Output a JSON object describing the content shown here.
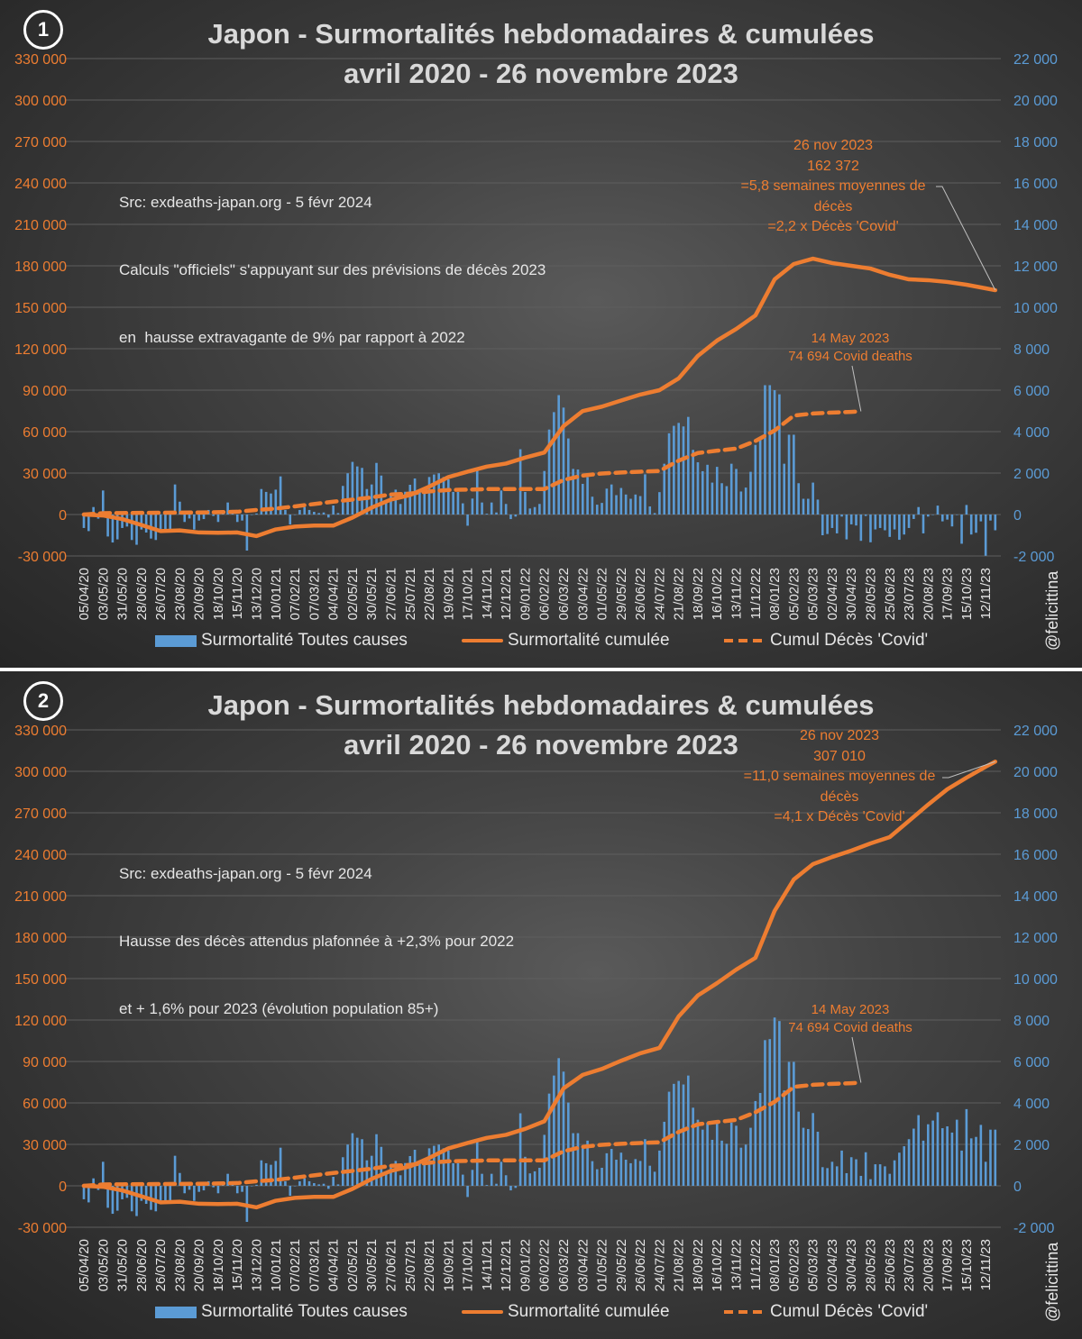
{
  "colors": {
    "bars": "#5b9bd5",
    "cumulative": "#ed7d31",
    "covid": "#ed7d31",
    "left_axis": "#ed7d31",
    "right_axis": "#5b9bd5",
    "grid": "#5e5e5e"
  },
  "legend": {
    "bars": "Surmortalité Toutes causes",
    "cumulative": "Surmortalité cumulée",
    "covid": "Cumul Décès 'Covid'"
  },
  "watermark": "@felicittina",
  "chart_data": [
    {
      "type": "bar+line",
      "badge": "1",
      "title_line1": "Japon - Surmortalités hebdomadaires & cumulées",
      "title_line2": "avril 2020 - 26 novembre 2023",
      "note": [
        "Src: exdeaths-japan.org - 5 févr 2024",
        "Calculs \"officiels\" s'appuyant sur des prévisions de décès 2023",
        "en  hausse extravagante de 9% par rapport à 2022"
      ],
      "annotation_end": [
        "26 nov 2023",
        "162 372",
        "=5,8 semaines moyennes de",
        "décès",
        "=2,2 x Décès 'Covid'"
      ],
      "annotation_covid": [
        "14 May 2023",
        "74 694 Covid deaths"
      ],
      "left_axis": {
        "ylim": [
          -30000,
          330000
        ],
        "ticks": [
          "-30 000",
          "0",
          "30 000",
          "60 000",
          "90 000",
          "120 000",
          "150 000",
          "180 000",
          "210 000",
          "240 000",
          "270 000",
          "300 000",
          "330 000"
        ]
      },
      "right_axis": {
        "ylim": [
          -2000,
          22000
        ],
        "ticks": [
          "-2 000",
          "0",
          "2 000",
          "4 000",
          "6 000",
          "8 000",
          "10 000",
          "12 000",
          "14 000",
          "16 000",
          "18 000",
          "20 000",
          "22 000"
        ]
      },
      "grid": true,
      "x_frequency": "weekly",
      "x_start": "05/04/20",
      "x_end": "26/11/23",
      "categories": [
        "05/04/20",
        "03/05/20",
        "31/05/20",
        "28/06/20",
        "26/07/20",
        "23/08/20",
        "20/09/20",
        "18/10/20",
        "15/11/20",
        "13/12/20",
        "10/01/21",
        "07/02/21",
        "07/03/21",
        "04/04/21",
        "02/05/21",
        "30/05/21",
        "27/06/21",
        "25/07/21",
        "22/08/21",
        "19/09/21",
        "17/10/21",
        "14/11/21",
        "12/12/21",
        "09/01/22",
        "06/02/22",
        "06/03/22",
        "03/04/22",
        "01/05/22",
        "29/05/22",
        "26/06/22",
        "24/07/22",
        "21/08/22",
        "18/09/22",
        "16/10/22",
        "13/11/22",
        "11/12/22",
        "08/01/23",
        "05/02/23",
        "05/03/23",
        "02/04/23",
        "30/04/23",
        "28/05/23",
        "25/06/23",
        "23/07/23",
        "20/08/23",
        "17/09/23",
        "15/10/23",
        "12/11/23"
      ],
      "weekly_excess": [
        -650,
        -800,
        360,
        -200,
        1160,
        -1060,
        -1350,
        -1200,
        -650,
        -580,
        -1230,
        -1460,
        -725,
        -870,
        -1160,
        -1230,
        -800,
        -870,
        -725,
        1450,
        620,
        -360,
        -190,
        -725,
        -290,
        -220,
        220,
        -70,
        -360,
        70,
        580,
        220,
        -360,
        -290,
        -1740,
        0,
        50,
        1230,
        1090,
        1015,
        1200,
        1840,
        220,
        -480,
        0,
        220,
        360,
        220,
        130,
        70,
        100,
        -145,
        435,
        70,
        1380,
        1990,
        2540,
        2320,
        2250,
        1230,
        1450,
        2490,
        1880,
        650,
        940,
        1200,
        510,
        1100,
        1435,
        1740,
        1100,
        1160,
        1810,
        1930,
        1990,
        1810,
        1700,
        1090,
        1090,
        540,
        -540,
        770,
        2140,
        580,
        40,
        580,
        100,
        1160,
        510,
        -220,
        -100,
        3150,
        1090,
        290,
        360,
        510,
        2100,
        4100,
        4940,
        5760,
        5160,
        3670,
        2200,
        2170,
        1480,
        1800,
        860,
        475,
        560,
        1250,
        1450,
        935,
        1280,
        965,
        760,
        965,
        890,
        1940,
        390,
        70,
        1080,
        2450,
        3920,
        4280,
        4420,
        4250,
        4710,
        3120,
        2520,
        2090,
        2400,
        1540,
        2300,
        1510,
        1370,
        2450,
        2200,
        1110,
        1300,
        2060,
        3360,
        3740,
        6240,
        6240,
        6000,
        5800,
        2450,
        3850,
        3850,
        1510,
        760,
        760,
        1540,
        720,
        -1000,
        -940,
        -650,
        -910,
        -100,
        -1200,
        -475,
        -530,
        -1270,
        -70,
        -1340,
        -720,
        -650,
        -760,
        -1080,
        -720,
        -1220,
        -965,
        -650,
        -215,
        360,
        -910,
        -100,
        0,
        430,
        -330,
        -245,
        -575,
        0,
        -1410,
        460,
        -965,
        -880,
        -330,
        -1990,
        -290,
        -760
      ],
      "cumulative_at_categories": [
        0,
        -700,
        -3300,
        -7600,
        -12000,
        -11500,
        -13000,
        -13200,
        -13000,
        -15600,
        -10800,
        -8700,
        -8000,
        -8000,
        -2200,
        5000,
        10800,
        14100,
        20200,
        27100,
        31000,
        34700,
        36900,
        41200,
        44900,
        64000,
        74900,
        78100,
        82500,
        86800,
        90000,
        98500,
        114800,
        125900,
        134300,
        144100,
        170200,
        181300,
        185200,
        182000,
        180000,
        178000,
        173500,
        170200,
        169600,
        168300,
        166300,
        163700
      ],
      "cumulative_final": {
        "date": "26/11/23",
        "value": 162372
      },
      "covid_at_categories": [
        0,
        1000,
        1100,
        1200,
        1300,
        1400,
        1500,
        1700,
        2000,
        3300,
        4300,
        5900,
        7600,
        9300,
        10800,
        12400,
        14500,
        15200,
        16700,
        17800,
        18000,
        18400,
        18400,
        18400,
        18400,
        25000,
        28200,
        29700,
        30400,
        31000,
        31500,
        39000,
        44500,
        46200,
        47700,
        53200,
        60800,
        71600,
        73100,
        73800,
        74300
      ],
      "covid_final": {
        "date": "14/05/23",
        "value": 74694
      }
    },
    {
      "type": "bar+line",
      "badge": "2",
      "title_line1": "Japon - Surmortalités hebdomadaires & cumulées",
      "title_line2": "avril 2020 - 26 novembre 2023",
      "note": [
        "Src: exdeaths-japan.org - 5 févr 2024",
        "Hausse des décès attendus plafonnée à +2,3% pour 2022",
        "et + 1,6% pour 2023 (évolution population 85+)"
      ],
      "annotation_end": [
        "26 nov 2023",
        "307 010",
        "=11,0 semaines moyennes de",
        "décès",
        "=4,1 x Décès 'Covid'"
      ],
      "annotation_covid": [
        "14 May 2023",
        "74 694 Covid deaths"
      ],
      "left_axis": {
        "ylim": [
          -30000,
          330000
        ],
        "ticks": [
          "-30 000",
          "0",
          "30 000",
          "60 000",
          "90 000",
          "120 000",
          "150 000",
          "180 000",
          "210 000",
          "240 000",
          "270 000",
          "300 000",
          "330 000"
        ]
      },
      "right_axis": {
        "ylim": [
          -2000,
          22000
        ],
        "ticks": [
          "-2 000",
          "0",
          "2 000",
          "4 000",
          "6 000",
          "8 000",
          "10 000",
          "12 000",
          "14 000",
          "16 000",
          "18 000",
          "20 000",
          "22 000"
        ]
      },
      "grid": true,
      "x_frequency": "weekly",
      "x_start": "05/04/20",
      "x_end": "26/11/23",
      "categories": [
        "05/04/20",
        "03/05/20",
        "31/05/20",
        "28/06/20",
        "26/07/20",
        "23/08/20",
        "20/09/20",
        "18/10/20",
        "15/11/20",
        "13/12/20",
        "10/01/21",
        "07/02/21",
        "07/03/21",
        "04/04/21",
        "02/05/21",
        "30/05/21",
        "27/06/21",
        "25/07/21",
        "22/08/21",
        "19/09/21",
        "17/10/21",
        "14/11/21",
        "12/12/21",
        "09/01/22",
        "06/02/22",
        "06/03/22",
        "03/04/22",
        "01/05/22",
        "29/05/22",
        "26/06/22",
        "24/07/22",
        "21/08/22",
        "18/09/22",
        "16/10/22",
        "13/11/22",
        "11/12/22",
        "08/01/23",
        "05/02/23",
        "05/03/23",
        "02/04/23",
        "30/04/23",
        "28/05/23",
        "25/06/23",
        "23/07/23",
        "20/08/23",
        "17/09/23",
        "15/10/23",
        "12/11/23"
      ],
      "weekly_excess": [
        -650,
        -800,
        360,
        -200,
        1160,
        -1060,
        -1350,
        -1200,
        -650,
        -580,
        -1230,
        -1460,
        -725,
        -870,
        -1160,
        -1230,
        -800,
        -870,
        -725,
        1450,
        620,
        -360,
        -190,
        -725,
        -290,
        -220,
        220,
        -70,
        -360,
        70,
        580,
        220,
        -360,
        -290,
        -1740,
        0,
        50,
        1230,
        1090,
        1015,
        1200,
        1840,
        220,
        -480,
        0,
        220,
        360,
        220,
        130,
        70,
        100,
        -145,
        435,
        70,
        1380,
        1990,
        2540,
        2320,
        2250,
        1230,
        1450,
        2490,
        1880,
        650,
        940,
        1200,
        510,
        1100,
        1435,
        1740,
        1100,
        1160,
        1810,
        1930,
        1990,
        1810,
        1700,
        1090,
        1090,
        540,
        -540,
        770,
        2140,
        580,
        40,
        580,
        100,
        1160,
        510,
        -220,
        -100,
        3500,
        1400,
        600,
        700,
        870,
        2460,
        4450,
        5320,
        6160,
        5510,
        4020,
        2540,
        2540,
        1810,
        2180,
        1190,
        800,
        870,
        1570,
        1780,
        1260,
        1600,
        1260,
        1090,
        1290,
        1200,
        2250,
        970,
        680,
        1700,
        3090,
        4540,
        4920,
        5060,
        4890,
        5320,
        3770,
        3190,
        2710,
        3050,
        2220,
        3000,
        2180,
        2030,
        3050,
        2900,
        1840,
        1990,
        2800,
        4090,
        4480,
        7030,
        7080,
        8120,
        7950,
        4600,
        5980,
        5980,
        3580,
        2800,
        2740,
        3510,
        2610,
        900,
        855,
        1160,
        940,
        1700,
        610,
        1380,
        1280,
        480,
        1620,
        320,
        1040,
        1040,
        940,
        580,
        1230,
        1600,
        1910,
        2250,
        2760,
        3410,
        2180,
        2970,
        3150,
        3550,
        2780,
        2870,
        2570,
        3190,
        1700,
        3700,
        2290,
        2360,
        2940,
        1160,
        2710,
        2710
      ],
      "cumulative_at_categories": [
        0,
        -700,
        -3300,
        -7600,
        -12000,
        -11500,
        -13000,
        -13200,
        -13000,
        -15600,
        -10800,
        -8700,
        -8000,
        -8000,
        -2200,
        5000,
        10800,
        14100,
        20200,
        27100,
        31000,
        34700,
        36900,
        41200,
        46700,
        70500,
        80300,
        84600,
        90500,
        95900,
        99800,
        122600,
        137800,
        146700,
        156500,
        165000,
        199000,
        221700,
        232800,
        238000,
        242600,
        247800,
        252400,
        264100,
        275900,
        287000,
        295400,
        303300
      ],
      "cumulative_final": {
        "date": "26/11/23",
        "value": 307010
      },
      "covid_at_categories": [
        0,
        1000,
        1100,
        1200,
        1300,
        1400,
        1500,
        1700,
        2000,
        3300,
        4300,
        5900,
        7600,
        9300,
        10800,
        12400,
        14500,
        15200,
        16700,
        17800,
        18000,
        18400,
        18400,
        18400,
        18400,
        25000,
        28200,
        29700,
        30400,
        31000,
        31500,
        39000,
        44500,
        46200,
        47700,
        53200,
        60800,
        71600,
        73100,
        73800,
        74300
      ],
      "covid_final": {
        "date": "14/05/23",
        "value": 74694
      }
    }
  ]
}
